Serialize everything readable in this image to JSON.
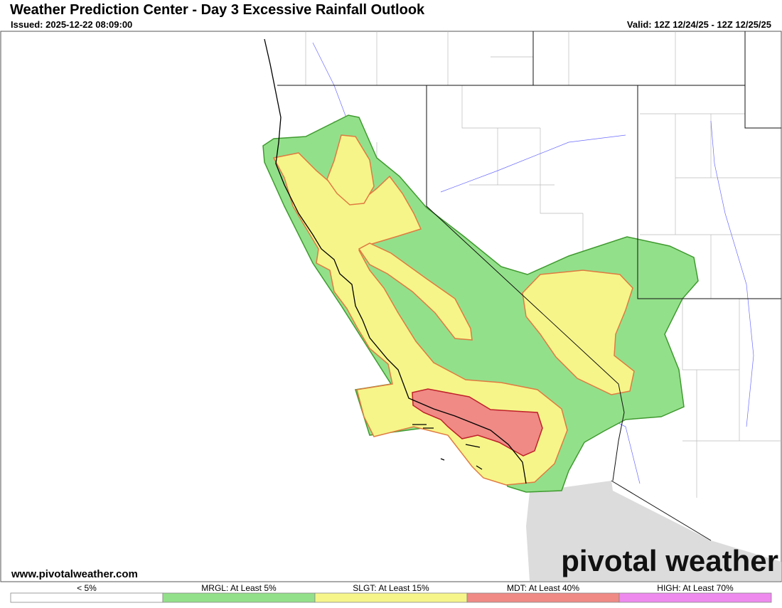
{
  "header": {
    "title": "Weather Prediction Center - Day 3 Excessive Rainfall Outlook",
    "issued": "Issued: 2025-12-22 08:09:00",
    "valid": "Valid: 12Z 12/24/25 - 12Z 12/25/25"
  },
  "map": {
    "website": "www.pivotalweather.com",
    "logo": "pivotal weather"
  },
  "legend": {
    "items": [
      {
        "label": "< 5%",
        "color": "#ffffff"
      },
      {
        "label": "MRGL: At Least 5%",
        "color": "#93e08a"
      },
      {
        "label": "SLGT: At Least 15%",
        "color": "#f6f58a"
      },
      {
        "label": "MDT: At Least 40%",
        "color": "#ef8a85"
      },
      {
        "label": "HIGH: At Least 70%",
        "color": "#ee8aee"
      }
    ]
  }
}
